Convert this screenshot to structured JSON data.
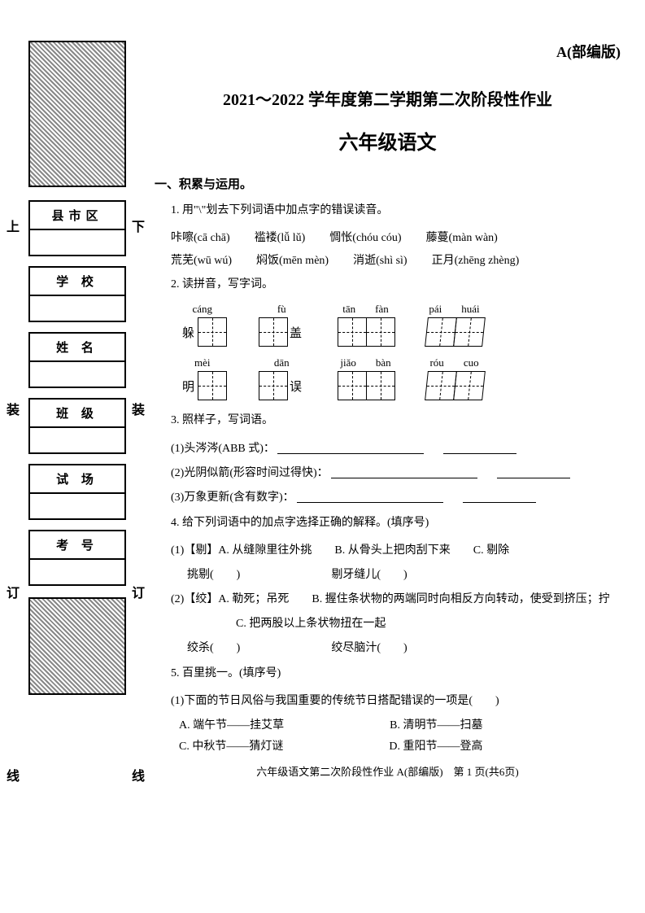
{
  "header": {
    "version": "A(部编版)",
    "title": "2021～2022 学年度第二学期第二次阶段性作业",
    "subtitle": "六年级语文"
  },
  "sidebar": {
    "boxes": [
      "县市区",
      "学 校",
      "姓 名",
      "班 级",
      "试 场",
      "考 号"
    ],
    "markers": {
      "top_left": "上",
      "top_right": "下",
      "zhuang_left": "装",
      "zhuang_right": "装",
      "ding_left": "订",
      "ding_right": "订",
      "xian_left": "线",
      "xian_right": "线"
    }
  },
  "section1": {
    "head": "一、积累与运用。",
    "q1": {
      "text": "1. 用\"\\\"划去下列词语中加点字的错误读音。",
      "row1": [
        "咔嚓(cā  chā)",
        "褴褛(lǚ  lǔ)",
        "惆怅(chóu  cóu)",
        "藤蔓(màn  wàn)"
      ],
      "row2": [
        "荒芜(wū  wú)",
        "焖饭(mēn  mèn)",
        "消逝(shì  sì)",
        "正月(zhēng  zhèng)"
      ]
    },
    "q2": {
      "text": "2. 读拼音，写字词。",
      "row1": [
        {
          "pinyin": [
            "cáng"
          ],
          "pre": "躲",
          "boxes": 1,
          "post": "",
          "skew": false
        },
        {
          "pinyin": [
            "fù"
          ],
          "pre": "",
          "boxes": 1,
          "post": "盖",
          "skew": false
        },
        {
          "pinyin": [
            "tān",
            "fàn"
          ],
          "pre": "",
          "boxes": 2,
          "post": "",
          "skew": false
        },
        {
          "pinyin": [
            "pái",
            "huái"
          ],
          "pre": "",
          "boxes": 2,
          "post": "",
          "skew": true
        }
      ],
      "row2": [
        {
          "pinyin": [
            "mèi"
          ],
          "pre": "明",
          "boxes": 1,
          "post": "",
          "skew": false
        },
        {
          "pinyin": [
            "dān"
          ],
          "pre": "",
          "boxes": 1,
          "post": "误",
          "skew": false
        },
        {
          "pinyin": [
            "jiǎo",
            "bàn"
          ],
          "pre": "",
          "boxes": 2,
          "post": "",
          "skew": false
        },
        {
          "pinyin": [
            "róu",
            "cuo"
          ],
          "pre": "",
          "boxes": 2,
          "post": "",
          "skew": true
        }
      ]
    },
    "q3": {
      "text": "3. 照样子，写词语。",
      "items": [
        "(1)头涔涔(ABB 式)：",
        "(2)光阴似箭(形容时间过得快)：",
        "(3)万象更新(含有数字)："
      ]
    },
    "q4": {
      "text": "4. 给下列词语中的加点字选择正确的解释。(填序号)",
      "i1_def": "(1)【剔】A. 从缝隙里往外挑　　B. 从骨头上把肉刮下来　　C. 剔除",
      "i1_words": "挑剔(　　)　　　　　　　　剔牙缝儿(　　)",
      "i2_def": "(2)【绞】A. 勒死；吊死　　B. 握住条状物的两端同时向相反方向转动，使受到挤压；拧",
      "i2_def2": "C. 把两股以上条状物扭在一起",
      "i2_words": "绞杀(　　)　　　　　　　　绞尽脑汁(　　)"
    },
    "q5": {
      "text": "5. 百里挑一。(填序号)",
      "stem": "(1)下面的节日风俗与我国重要的传统节日搭配错误的一项是(　　)",
      "opts": [
        [
          "A. 端午节——挂艾草",
          "B. 清明节——扫墓"
        ],
        [
          "C. 中秋节——猜灯谜",
          "D. 重阳节——登高"
        ]
      ]
    }
  },
  "footer": "六年级语文第二次阶段性作业 A(部编版)　第 1 页(共6页)"
}
